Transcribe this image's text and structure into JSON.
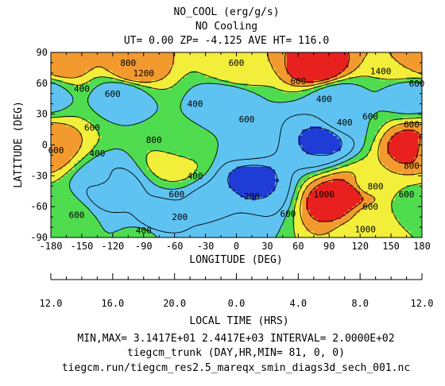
{
  "header": {
    "title": "NO_COOL (erg/g/s)",
    "subtitle": "NO Cooling",
    "info": "UT= 0.00 ZP= -4.125 AVE HT= 116.0"
  },
  "footer": {
    "minmax": "MIN,MAX=  3.1417E+01  2.4417E+03 INTERVAL=  2.0000E+02",
    "model": "tiegcm_trunk (DAY,HR,MIN= 81, 0, 0)",
    "file": "tiegcm.run/tiegcm_res2.5_mareqx_smin_diags3d_sech_001.nc"
  },
  "colors": {
    "blue": "#1f3cd6",
    "cyan": "#5fc3f2",
    "green": "#4fdc4f",
    "yellow": "#f2ee3a",
    "orange": "#f39a2e",
    "red": "#e8201e"
  },
  "chart_data": {
    "type": "heatmap",
    "title": "NO_COOL (erg/g/s)",
    "xlabel": "LONGITUDE (DEG)",
    "ylabel": "LATITUDE (DEG)",
    "x2label": "LOCAL TIME (HRS)",
    "xlim": [
      -180,
      180
    ],
    "ylim": [
      -90,
      90
    ],
    "x_ticks": [
      "-180",
      "-150",
      "-120",
      "-90",
      "-60",
      "-30",
      "0",
      "30",
      "60",
      "90",
      "120",
      "150",
      "180"
    ],
    "y_ticks": [
      "90",
      "60",
      "30",
      "0",
      "-30",
      "-60",
      "-90"
    ],
    "lt_ticks": [
      "12.0",
      "16.0",
      "20.0",
      "0.0",
      "4.0",
      "8.0",
      "12.0"
    ],
    "contour_levels": [
      200,
      400,
      600,
      800,
      1000,
      1200,
      1400
    ],
    "min": 31.417,
    "max": 2441.7,
    "interval": 200,
    "features": [
      {
        "lon": -172,
        "lat": 82,
        "value": 1200
      },
      {
        "lon": -100,
        "lat": 72,
        "value": 1200
      },
      {
        "lon": 0,
        "lat": 73,
        "value": 1000
      },
      {
        "lon": 80,
        "lat": 75,
        "value": 1400
      },
      {
        "lon": 165,
        "lat": 77,
        "value": 1000
      },
      {
        "lon": -110,
        "lat": 50,
        "value": 400
      },
      {
        "lon": -10,
        "lat": 45,
        "value": 400
      },
      {
        "lon": 170,
        "lat": 50,
        "value": 400
      },
      {
        "lon": 95,
        "lat": 45,
        "value": 400
      },
      {
        "lon": -55,
        "lat": -5,
        "value": 600
      },
      {
        "lon": -60,
        "lat": -15,
        "value": 1000
      },
      {
        "lon": 10,
        "lat": 5,
        "value": 600
      },
      {
        "lon": 75,
        "lat": 0,
        "value": 200
      },
      {
        "lon": 85,
        "lat": 5,
        "value": 100
      },
      {
        "lon": 105,
        "lat": 25,
        "value": 600
      },
      {
        "lon": -178,
        "lat": -3,
        "value": 1000
      },
      {
        "lon": 172,
        "lat": -2,
        "value": 1400
      },
      {
        "lon": -130,
        "lat": -35,
        "value": 450
      },
      {
        "lon": -122,
        "lat": -42,
        "value": 200
      },
      {
        "lon": 20,
        "lat": -45,
        "value": 200
      },
      {
        "lon": 15,
        "lat": -35,
        "value": 100
      },
      {
        "lon": -80,
        "lat": -75,
        "value": 250
      },
      {
        "lon": -20,
        "lat": -58,
        "value": 300
      },
      {
        "lon": 110,
        "lat": -48,
        "value": 1400
      },
      {
        "lon": 95,
        "lat": -55,
        "value": 1400
      },
      {
        "lon": 125,
        "lat": -40,
        "value": 900
      },
      {
        "lon": 130,
        "lat": -70,
        "value": 900
      },
      {
        "lon": -170,
        "lat": -70,
        "value": 800
      },
      {
        "lon": -90,
        "lat": -87,
        "value": 700
      },
      {
        "lon": 120,
        "lat": -87,
        "value": 900
      },
      {
        "lon": 170,
        "lat": -60,
        "value": 700
      },
      {
        "lon": 0,
        "lat": -85,
        "value": 600
      }
    ],
    "contour_labels": [
      {
        "text": "800",
        "lon": -105,
        "lat": 80
      },
      {
        "text": "600",
        "lon": 0,
        "lat": 80
      },
      {
        "text": "1200",
        "lon": -90,
        "lat": 70
      },
      {
        "text": "1400",
        "lon": 140,
        "lat": 72
      },
      {
        "text": "600",
        "lon": 60,
        "lat": 62
      },
      {
        "text": "600",
        "lon": 175,
        "lat": 60
      },
      {
        "text": "400",
        "lon": -150,
        "lat": 55
      },
      {
        "text": "600",
        "lon": -120,
        "lat": 50
      },
      {
        "text": "400",
        "lon": -40,
        "lat": 40
      },
      {
        "text": "400",
        "lon": 85,
        "lat": 45
      },
      {
        "text": "600",
        "lon": 130,
        "lat": 28
      },
      {
        "text": "600",
        "lon": 10,
        "lat": 25
      },
      {
        "text": "400",
        "lon": 105,
        "lat": 22
      },
      {
        "text": "600",
        "lon": -140,
        "lat": 17
      },
      {
        "text": "800",
        "lon": -80,
        "lat": 5
      },
      {
        "text": "600",
        "lon": 170,
        "lat": 20
      },
      {
        "text": "600",
        "lon": -175,
        "lat": -5
      },
      {
        "text": "400",
        "lon": -135,
        "lat": -8
      },
      {
        "text": "400",
        "lon": -40,
        "lat": -30
      },
      {
        "text": "200",
        "lon": 15,
        "lat": -50
      },
      {
        "text": "600",
        "lon": -58,
        "lat": -48
      },
      {
        "text": "800",
        "lon": 170,
        "lat": -20
      },
      {
        "text": "800",
        "lon": 135,
        "lat": -40
      },
      {
        "text": "600",
        "lon": 165,
        "lat": -48
      },
      {
        "text": "1000",
        "lon": 85,
        "lat": -48
      },
      {
        "text": "600",
        "lon": 130,
        "lat": -60
      },
      {
        "text": "600",
        "lon": 50,
        "lat": -67
      },
      {
        "text": "600",
        "lon": -155,
        "lat": -68
      },
      {
        "text": "200",
        "lon": -55,
        "lat": -70
      },
      {
        "text": "400",
        "lon": -90,
        "lat": -83
      },
      {
        "text": "1000",
        "lon": 125,
        "lat": -82
      }
    ]
  }
}
